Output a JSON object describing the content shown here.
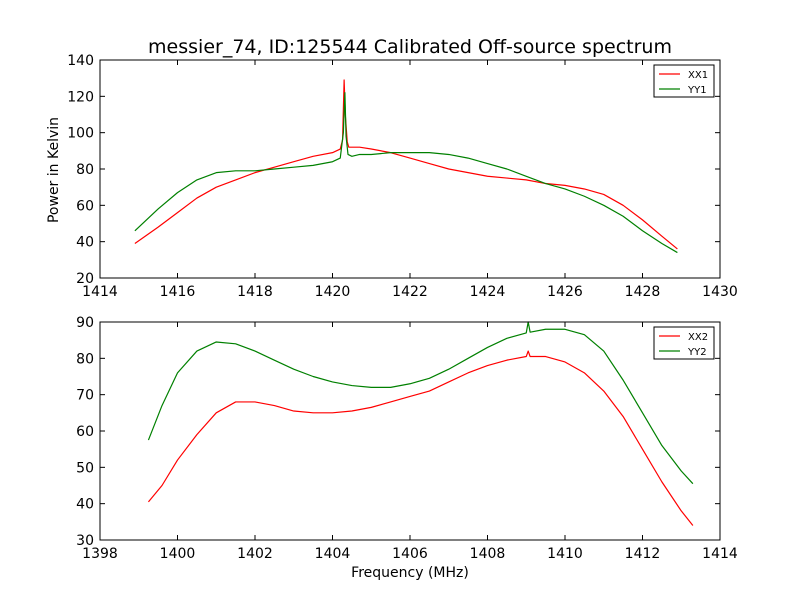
{
  "figure": {
    "title": "messier_74, ID:125544 Calibrated Off-source spectrum",
    "xlabel": "Frequency (MHz)",
    "ylabel": "Power in Kelvin"
  },
  "colors": {
    "red": "#ff0000",
    "green": "#008000"
  },
  "chart_data": [
    {
      "type": "line",
      "xlim": [
        1414,
        1430
      ],
      "ylim": [
        20,
        140
      ],
      "xticks": [
        1414,
        1416,
        1418,
        1420,
        1422,
        1424,
        1426,
        1428,
        1430
      ],
      "yticks": [
        20,
        40,
        60,
        80,
        100,
        120,
        140
      ],
      "grid": false,
      "legend_position": "top-right",
      "series": [
        {
          "name": "XX1",
          "color": "#ff0000",
          "x": [
            1414.9,
            1415.5,
            1416.0,
            1416.5,
            1417.0,
            1417.5,
            1418.0,
            1418.5,
            1419.0,
            1419.5,
            1420.0,
            1420.2,
            1420.26,
            1420.3,
            1420.33,
            1420.38,
            1420.42,
            1420.5,
            1420.7,
            1421.0,
            1421.5,
            1422.0,
            1422.5,
            1423.0,
            1423.5,
            1424.0,
            1424.5,
            1425.0,
            1425.5,
            1426.0,
            1426.5,
            1427.0,
            1427.5,
            1428.0,
            1428.5,
            1428.9
          ],
          "y": [
            39,
            48,
            56,
            64,
            70,
            74,
            78,
            81,
            84,
            87,
            89,
            91,
            96,
            129,
            110,
            95,
            92,
            92,
            92,
            91,
            89,
            86,
            83,
            80,
            78,
            76,
            75,
            74,
            72,
            71,
            69,
            66,
            60,
            52,
            43,
            36
          ]
        },
        {
          "name": "YY1",
          "color": "#008000",
          "x": [
            1414.9,
            1415.5,
            1416.0,
            1416.5,
            1417.0,
            1417.5,
            1418.0,
            1418.5,
            1419.0,
            1419.5,
            1420.0,
            1420.2,
            1420.28,
            1420.32,
            1420.35,
            1420.4,
            1420.5,
            1420.7,
            1421.0,
            1421.5,
            1422.0,
            1422.5,
            1423.0,
            1423.5,
            1424.0,
            1424.5,
            1425.0,
            1425.5,
            1426.0,
            1426.5,
            1427.0,
            1427.5,
            1428.0,
            1428.5,
            1428.9
          ],
          "y": [
            46,
            58,
            67,
            74,
            78,
            79,
            79,
            80,
            81,
            82,
            84,
            86,
            100,
            122,
            98,
            88,
            87,
            88,
            88,
            89,
            89,
            89,
            88,
            86,
            83,
            80,
            76,
            72,
            69,
            65,
            60,
            54,
            46,
            39,
            34
          ]
        }
      ]
    },
    {
      "type": "line",
      "xlim": [
        1398,
        1414
      ],
      "ylim": [
        30,
        90
      ],
      "xticks": [
        1398,
        1400,
        1402,
        1404,
        1406,
        1408,
        1410,
        1412,
        1414
      ],
      "yticks": [
        30,
        40,
        50,
        60,
        70,
        80,
        90
      ],
      "grid": false,
      "legend_position": "top-right",
      "series": [
        {
          "name": "XX2",
          "color": "#ff0000",
          "x": [
            1399.25,
            1399.6,
            1400.0,
            1400.5,
            1401.0,
            1401.5,
            1402.0,
            1402.5,
            1403.0,
            1403.5,
            1404.0,
            1404.5,
            1405.0,
            1405.5,
            1406.0,
            1406.5,
            1407.0,
            1407.5,
            1408.0,
            1408.5,
            1409.0,
            1409.05,
            1409.1,
            1409.5,
            1410.0,
            1410.5,
            1411.0,
            1411.5,
            1412.0,
            1412.5,
            1413.0,
            1413.3
          ],
          "y": [
            40.5,
            45,
            52,
            59,
            65,
            68,
            68,
            67,
            65.5,
            65,
            65,
            65.5,
            66.5,
            68,
            69.5,
            71,
            73.5,
            76,
            78,
            79.5,
            80.5,
            82,
            80.5,
            80.5,
            79,
            76,
            71,
            64,
            55,
            46,
            38,
            34
          ]
        },
        {
          "name": "YY2",
          "color": "#008000",
          "x": [
            1399.25,
            1399.6,
            1400.0,
            1400.5,
            1401.0,
            1401.5,
            1402.0,
            1402.5,
            1403.0,
            1403.5,
            1404.0,
            1404.5,
            1405.0,
            1405.5,
            1406.0,
            1406.5,
            1407.0,
            1407.5,
            1408.0,
            1408.5,
            1409.0,
            1409.05,
            1409.1,
            1409.5,
            1410.0,
            1410.5,
            1411.0,
            1411.5,
            1412.0,
            1412.5,
            1413.0,
            1413.3
          ],
          "y": [
            57.5,
            67,
            76,
            82,
            84.5,
            84,
            82,
            79.5,
            77,
            75,
            73.5,
            72.5,
            72,
            72,
            73,
            74.5,
            77,
            80,
            83,
            85.5,
            87,
            90,
            87.2,
            88,
            88,
            86.5,
            82,
            74,
            65,
            56,
            49,
            45.5
          ]
        }
      ]
    }
  ]
}
